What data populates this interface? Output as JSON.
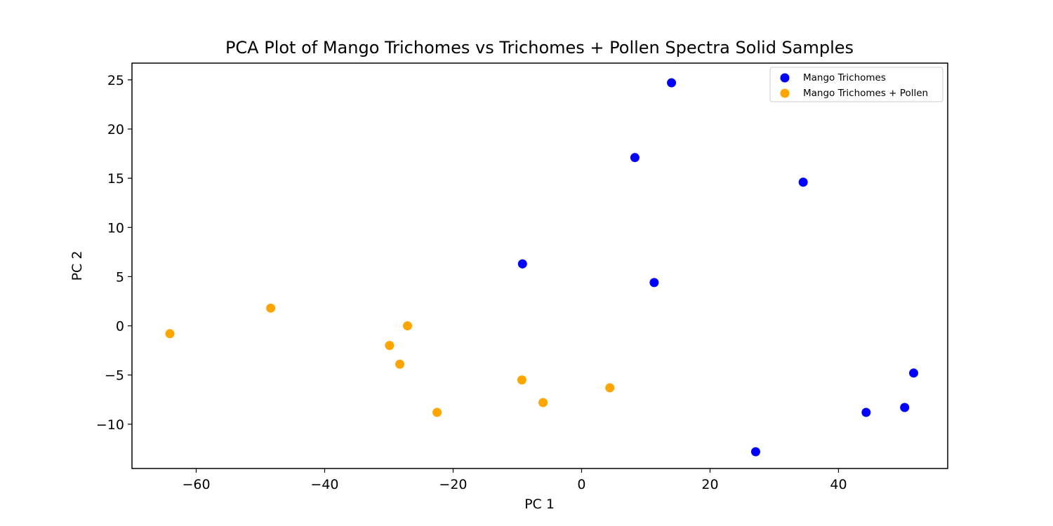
{
  "chart_data": {
    "type": "scatter",
    "title": "PCA Plot of Mango Trichomes vs Trichomes + Pollen Spectra Solid Samples",
    "xlabel": "PC 1",
    "ylabel": "PC 2",
    "xlim": [
      -70,
      57
    ],
    "ylim": [
      -14.5,
      26.7
    ],
    "xticks": [
      -60,
      -40,
      -20,
      0,
      20,
      40
    ],
    "yticks": [
      -10,
      -5,
      0,
      5,
      10,
      15,
      20,
      25
    ],
    "xtick_labels": [
      "−60",
      "−40",
      "−20",
      "0",
      "20",
      "40"
    ],
    "ytick_labels": [
      "−10",
      "−5",
      "0",
      "5",
      "10",
      "15",
      "20",
      "25"
    ],
    "grid": false,
    "legend_position": "top-right",
    "series": [
      {
        "name": "Mango Trichomes",
        "color": "#0000ff",
        "points": [
          {
            "x": 14.0,
            "y": 24.7
          },
          {
            "x": 8.3,
            "y": 17.1
          },
          {
            "x": 34.5,
            "y": 14.6
          },
          {
            "x": -9.2,
            "y": 6.3
          },
          {
            "x": 11.3,
            "y": 4.4
          },
          {
            "x": 51.7,
            "y": -4.8
          },
          {
            "x": 44.3,
            "y": -8.8
          },
          {
            "x": 50.3,
            "y": -8.3
          },
          {
            "x": 27.1,
            "y": -12.8
          }
        ]
      },
      {
        "name": "Mango Trichomes + Pollen",
        "color": "#ffa500",
        "points": [
          {
            "x": -64.1,
            "y": -0.8
          },
          {
            "x": -48.4,
            "y": 1.8
          },
          {
            "x": -27.1,
            "y": 0.0
          },
          {
            "x": -29.9,
            "y": -2.0
          },
          {
            "x": -28.3,
            "y": -3.9
          },
          {
            "x": -22.5,
            "y": -8.8
          },
          {
            "x": -9.3,
            "y": -5.5
          },
          {
            "x": -6.0,
            "y": -7.8
          },
          {
            "x": 4.4,
            "y": -6.3
          }
        ]
      }
    ]
  }
}
